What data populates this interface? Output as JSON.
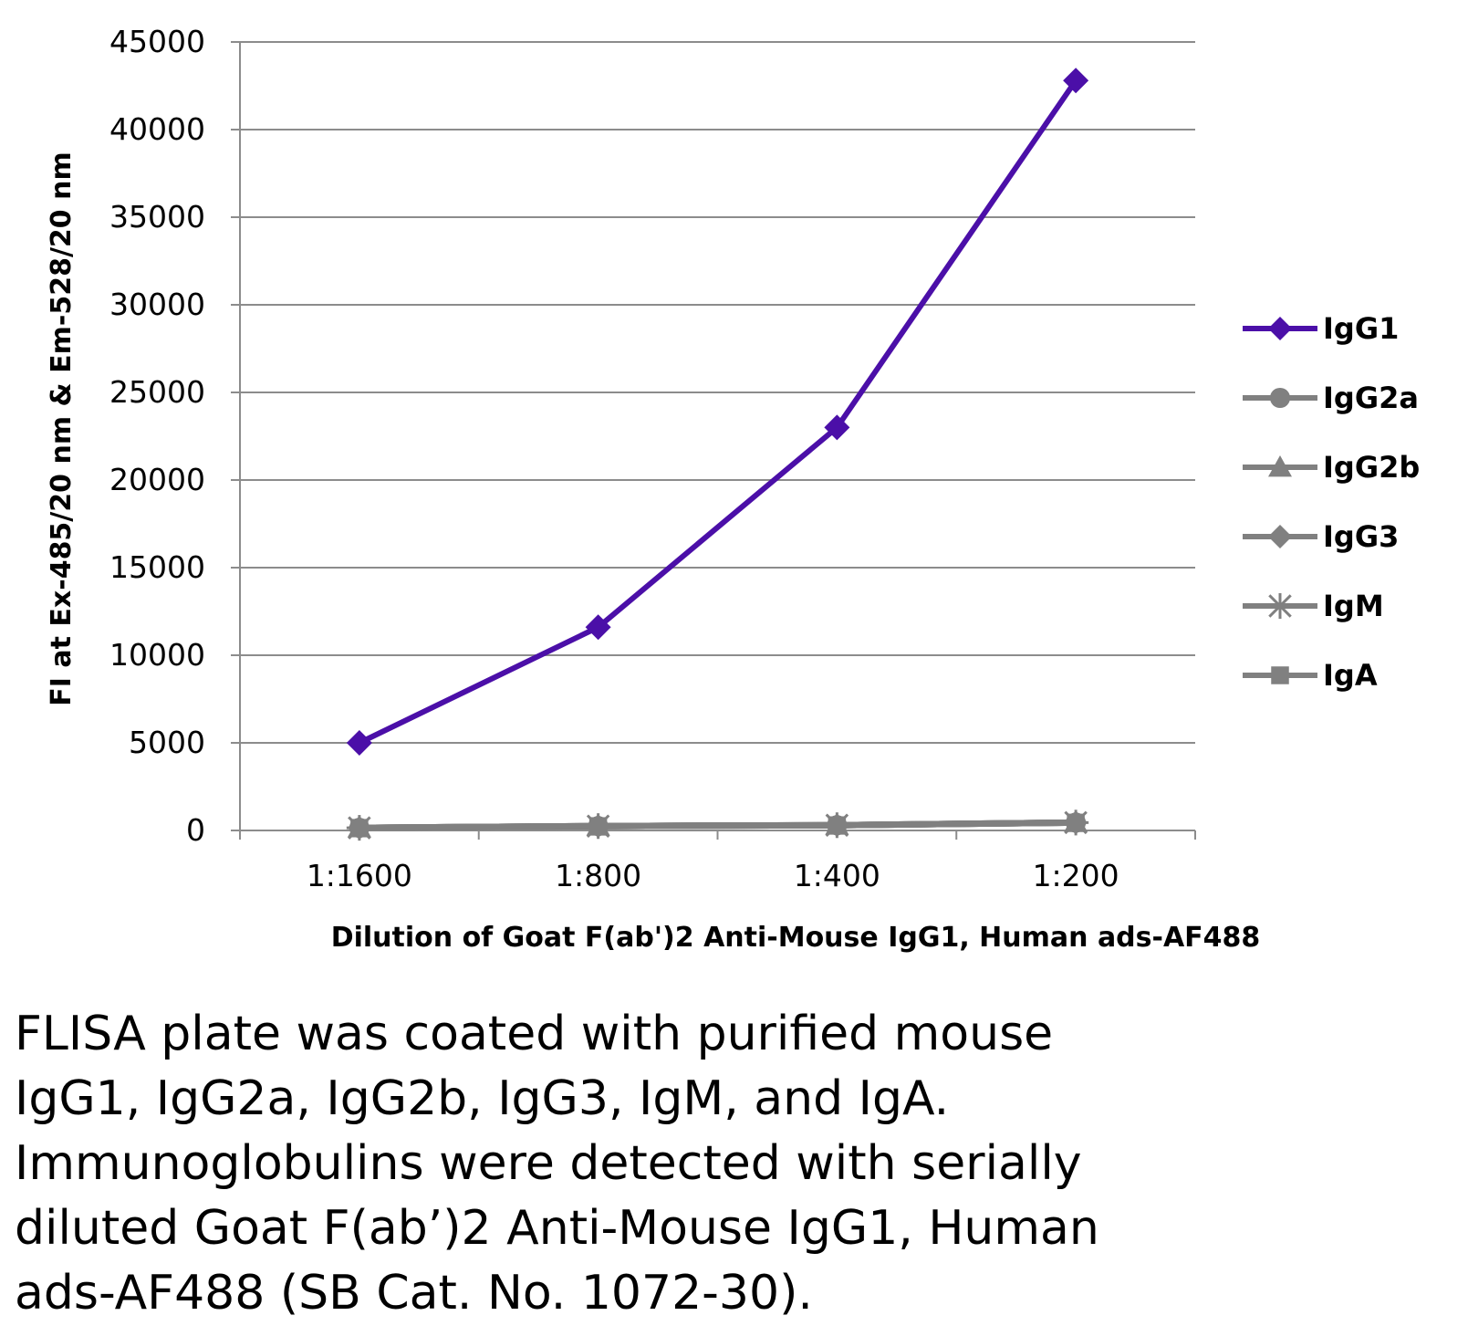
{
  "chart_data": {
    "type": "line",
    "title": "",
    "xlabel": "Dilution of Goat F(ab')2 Anti-Mouse IgG1, Human ads-AF488",
    "ylabel": "FI at Ex-485/20 nm & Em-528/20 nm",
    "categories": [
      "1:1600",
      "1:800",
      "1:400",
      "1:200"
    ],
    "ylim": [
      0,
      45000
    ],
    "yticks": [
      0,
      5000,
      10000,
      15000,
      20000,
      25000,
      30000,
      35000,
      40000,
      45000
    ],
    "grid": true,
    "legend_position": "right",
    "series": [
      {
        "name": "IgG1",
        "values": [
          5000,
          11600,
          23000,
          42800
        ],
        "color": "#4b0fa8",
        "marker": "diamond"
      },
      {
        "name": "IgG2a",
        "values": [
          150,
          250,
          300,
          450
        ],
        "color": "#808080",
        "marker": "circle"
      },
      {
        "name": "IgG2b",
        "values": [
          150,
          250,
          300,
          450
        ],
        "color": "#808080",
        "marker": "triangle"
      },
      {
        "name": "IgG3",
        "values": [
          150,
          250,
          300,
          450
        ],
        "color": "#808080",
        "marker": "diamond"
      },
      {
        "name": "IgM",
        "values": [
          150,
          250,
          300,
          450
        ],
        "color": "#808080",
        "marker": "star"
      },
      {
        "name": "IgA",
        "values": [
          150,
          250,
          300,
          450
        ],
        "color": "#808080",
        "marker": "square"
      }
    ]
  },
  "caption": {
    "lines": [
      "FLISA plate was coated with purified mouse",
      "IgG1, IgG2a, IgG2b, IgG3, IgM, and IgA.",
      "Immunoglobulins were detected with serially",
      "diluted Goat F(ab’)2 Anti-Mouse IgG1, Human",
      "ads-AF488 (SB Cat. No. 1072-30)."
    ]
  }
}
